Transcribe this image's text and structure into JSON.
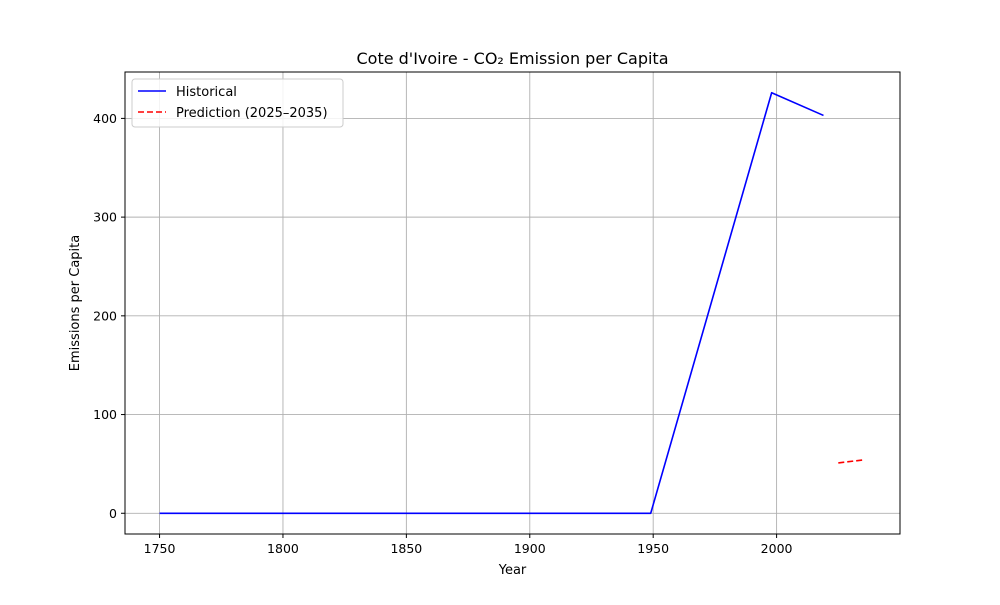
{
  "chart_data": {
    "type": "line",
    "title": "Cote d'Ivoire - CO₂ Emission per Capita",
    "xlabel": "Year",
    "ylabel": "Emissions per Capita",
    "xlim": [
      1736,
      2050
    ],
    "ylim": [
      -21,
      447
    ],
    "xticks": [
      1750,
      1800,
      1850,
      1900,
      1950,
      2000
    ],
    "yticks": [
      0,
      100,
      200,
      300,
      400
    ],
    "grid": true,
    "legend_position": "upper-left",
    "series": [
      {
        "name": "Historical",
        "color": "#0000ff",
        "linestyle": "solid",
        "x": [
          1750,
          1949,
          1998,
          2019
        ],
        "y": [
          0,
          0,
          426,
          403
        ]
      },
      {
        "name": "Prediction (2025–2035)",
        "color": "#ff0000",
        "linestyle": "dashed",
        "x": [
          2025,
          2035
        ],
        "y": [
          51,
          54
        ]
      }
    ]
  }
}
